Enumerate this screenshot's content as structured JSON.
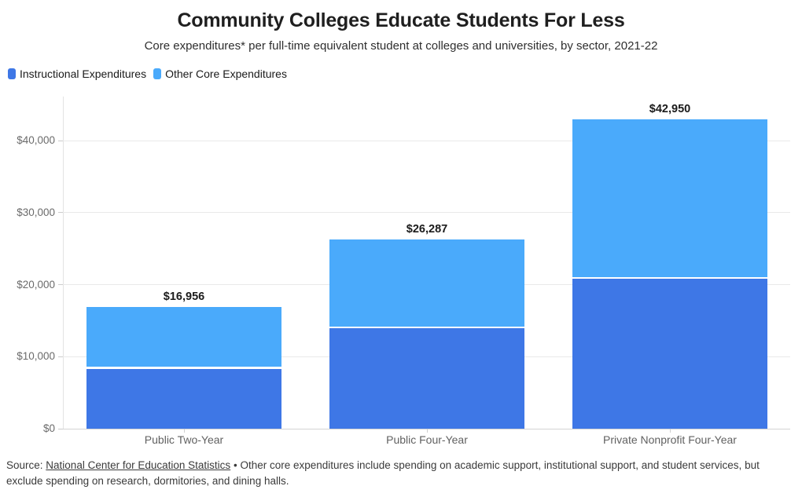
{
  "header": {
    "title": "Community Colleges Educate Students For Less",
    "subtitle": "Core expenditures* per full-time equivalent student at colleges and universities, by sector, 2021-22"
  },
  "legend": [
    {
      "label": "Instructional Expenditures",
      "color": "#3e77e6"
    },
    {
      "label": "Other Core Expenditures",
      "color": "#4aaafb"
    }
  ],
  "chart_data": {
    "type": "bar",
    "stacked": true,
    "title": "Community Colleges Educate Students For Less",
    "subtitle": "Core expenditures* per full-time equivalent student at colleges and universities, by sector, 2021-22",
    "categories": [
      "Public Two-Year",
      "Public Four-Year",
      "Private Nonprofit Four-Year"
    ],
    "series": [
      {
        "name": "Instructional Expenditures",
        "color": "#3e77e6",
        "values": [
          8560,
          14230,
          21000
        ]
      },
      {
        "name": "Other Core Expenditures",
        "color": "#4aaafb",
        "values": [
          8396,
          12057,
          21950
        ]
      }
    ],
    "totals": [
      16956,
      26287,
      42950
    ],
    "total_labels": [
      "$16,956",
      "$26,287",
      "$42,950"
    ],
    "ylabel": "",
    "xlabel": "",
    "ylim": [
      0,
      43600
    ],
    "yticks": [
      {
        "value": 0,
        "label": "$0"
      },
      {
        "value": 10000,
        "label": "$10,000"
      },
      {
        "value": 20000,
        "label": "$20,000"
      },
      {
        "value": 30000,
        "label": "$30,000"
      },
      {
        "value": 40000,
        "label": "$40,000"
      }
    ],
    "grid": "horizontal",
    "legend_position": "top-left",
    "segment_divider_color": "#ffffff"
  },
  "footer": {
    "source_prefix": "Source:",
    "source_link": "National Center for Education Statistics",
    "separator": "•",
    "note": "Other core expenditures include spending on academic support, institutional support, and student services, but exclude spending on research, dormitories, and dining halls."
  }
}
